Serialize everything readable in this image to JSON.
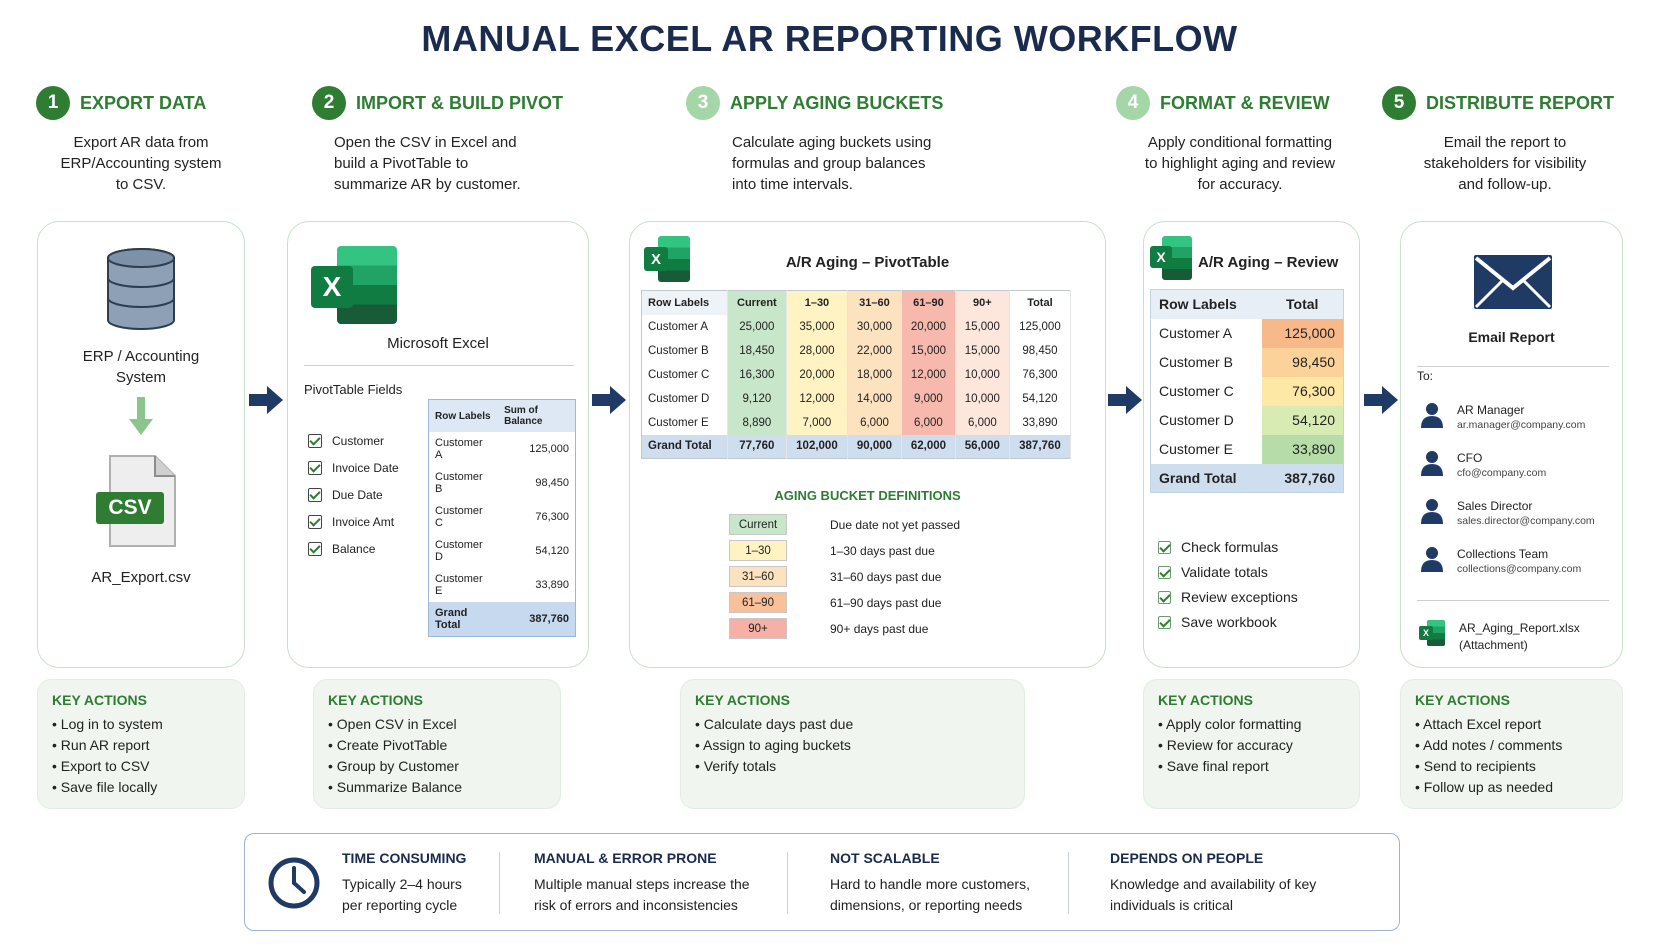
{
  "title": "MANUAL EXCEL AR REPORTING WORKFLOW",
  "steps": [
    {
      "num": "1",
      "title": "EXPORT DATA",
      "desc": [
        "Export AR data from",
        "ERP/Accounting system",
        "to CSV."
      ]
    },
    {
      "num": "2",
      "title": "IMPORT & BUILD PIVOT",
      "desc": [
        "Open the CSV in Excel and",
        "build a PivotTable to",
        "summarize AR by customer."
      ]
    },
    {
      "num": "3",
      "title": "APPLY AGING BUCKETS",
      "desc": [
        "Calculate aging buckets using",
        "formulas and group balances",
        "into time intervals."
      ]
    },
    {
      "num": "4",
      "title": "FORMAT & REVIEW",
      "desc": [
        "Apply conditional formatting",
        "to highlight aging and review",
        "for accuracy."
      ]
    },
    {
      "num": "5",
      "title": "DISTRIBUTE REPORT",
      "desc": [
        "Email the report to",
        "stakeholders for visibility",
        "and follow-up."
      ]
    }
  ],
  "card1": {
    "system_label": [
      "ERP / Accounting",
      "System"
    ],
    "csv_badge": "CSV",
    "file_name": "AR_Export.csv"
  },
  "card2": {
    "app_name": "Microsoft Excel",
    "excel_letter": "X",
    "fields_title": "PivotTable Fields",
    "fields": [
      "Customer",
      "Invoice Date",
      "Due Date",
      "Invoice Amt",
      "Balance"
    ],
    "mini_table": {
      "headers": [
        "Row Labels",
        "Sum of Balance"
      ],
      "rows": [
        [
          "Customer A",
          "125,000"
        ],
        [
          "Customer B",
          "98,450"
        ],
        [
          "Customer C",
          "76,300"
        ],
        [
          "Customer D",
          "54,120"
        ],
        [
          "Customer E",
          "33,890"
        ]
      ],
      "total": [
        "Grand Total",
        "387,760"
      ]
    }
  },
  "card3": {
    "title": "A/R Aging – PivotTable",
    "excel_letter": "X",
    "headers": [
      "Row Labels",
      "Current",
      "1–30",
      "31–60",
      "61–90",
      "90+",
      "Total"
    ],
    "rows": [
      [
        "Customer A",
        "25,000",
        "35,000",
        "30,000",
        "20,000",
        "15,000",
        "125,000"
      ],
      [
        "Customer B",
        "18,450",
        "28,000",
        "22,000",
        "15,000",
        "15,000",
        "98,450"
      ],
      [
        "Customer C",
        "16,300",
        "20,000",
        "18,000",
        "12,000",
        "10,000",
        "76,300"
      ],
      [
        "Customer D",
        "9,120",
        "12,000",
        "14,000",
        "9,000",
        "10,000",
        "54,120"
      ],
      [
        "Customer E",
        "8,890",
        "7,000",
        "6,000",
        "6,000",
        "6,000",
        "33,890"
      ]
    ],
    "total": [
      "Grand Total",
      "77,760",
      "102,000",
      "90,000",
      "62,000",
      "56,000",
      "387,760"
    ],
    "definitions_title": "AGING BUCKET DEFINITIONS",
    "definitions": [
      {
        "bucket": "Current",
        "text": "Due date not yet passed",
        "color": "#c8e6c9"
      },
      {
        "bucket": "1–30",
        "text": "1–30 days past due",
        "color": "#fff3c4"
      },
      {
        "bucket": "31–60",
        "text": "31–60 days past due",
        "color": "#fde2bf"
      },
      {
        "bucket": "61–90",
        "text": "61–90 days past due",
        "color": "#f8c19a"
      },
      {
        "bucket": "90+",
        "text": "90+ days past due",
        "color": "#f7b0a6"
      }
    ]
  },
  "card4": {
    "title": "A/R Aging – Review",
    "excel_letter": "X",
    "headers": [
      "Row Labels",
      "Total"
    ],
    "rows": [
      {
        "label": "Customer A",
        "value": "125,000",
        "color": "#f8b98a"
      },
      {
        "label": "Customer B",
        "value": "98,450",
        "color": "#fbd29a"
      },
      {
        "label": "Customer C",
        "value": "76,300",
        "color": "#fde8a6"
      },
      {
        "label": "Customer D",
        "value": "54,120",
        "color": "#d8ebb3"
      },
      {
        "label": "Customer E",
        "value": "33,890",
        "color": "#b6dcaa"
      }
    ],
    "total": [
      "Grand Total",
      "387,760"
    ],
    "checks": [
      "Check formulas",
      "Validate totals",
      "Review exceptions",
      "Save workbook"
    ]
  },
  "card5": {
    "title": "Email Report",
    "to_label": "To:",
    "recipients": [
      {
        "name": "AR Manager",
        "email": "ar.manager@company.com"
      },
      {
        "name": "CFO",
        "email": "cfo@company.com"
      },
      {
        "name": "Sales Director",
        "email": "sales.director@company.com"
      },
      {
        "name": "Collections Team",
        "email": "collections@company.com"
      }
    ],
    "attachment": [
      "AR_Aging_Report.xlsx",
      "(Attachment)"
    ],
    "attachment_letter": "X"
  },
  "key_actions": [
    {
      "title": "KEY ACTIONS",
      "items": [
        "Log in to system",
        "Run AR report",
        "Export to CSV",
        "Save file locally"
      ]
    },
    {
      "title": "KEY ACTIONS",
      "items": [
        "Open CSV in Excel",
        "Create PivotTable",
        "Group by Customer",
        "Summarize Balance"
      ]
    },
    {
      "title": "KEY ACTIONS",
      "items": [
        "Calculate days past due",
        "Assign to aging buckets",
        "Verify totals"
      ]
    },
    {
      "title": "KEY ACTIONS",
      "items": [
        "Apply color formatting",
        "Review for accuracy",
        "Save final report"
      ]
    },
    {
      "title": "KEY ACTIONS",
      "items": [
        "Attach Excel report",
        "Add notes / comments",
        "Send to recipients",
        "Follow up as needed"
      ]
    }
  ],
  "issues": [
    {
      "title": "TIME CONSUMING",
      "desc": [
        "Typically 2–4 hours",
        "per reporting cycle"
      ]
    },
    {
      "title": "MANUAL & ERROR PRONE",
      "desc": [
        "Multiple manual steps increase the",
        "risk of errors and inconsistencies"
      ]
    },
    {
      "title": "NOT SCALABLE",
      "desc": [
        "Hard to handle more customers,",
        "dimensions, or reporting needs"
      ]
    },
    {
      "title": "DEPENDS ON PEOPLE",
      "desc": [
        "Knowledge and availability of key",
        "individuals is critical"
      ]
    }
  ],
  "colors": {
    "accent_green": "#2e7d32",
    "navy": "#1a2b4d",
    "card_border": "#c9dfc9"
  },
  "icons": [
    "database-icon",
    "down-arrow-icon",
    "csv-file-icon",
    "excel-icon",
    "envelope-icon",
    "person-icon",
    "clock-icon",
    "right-arrow-icon"
  ]
}
